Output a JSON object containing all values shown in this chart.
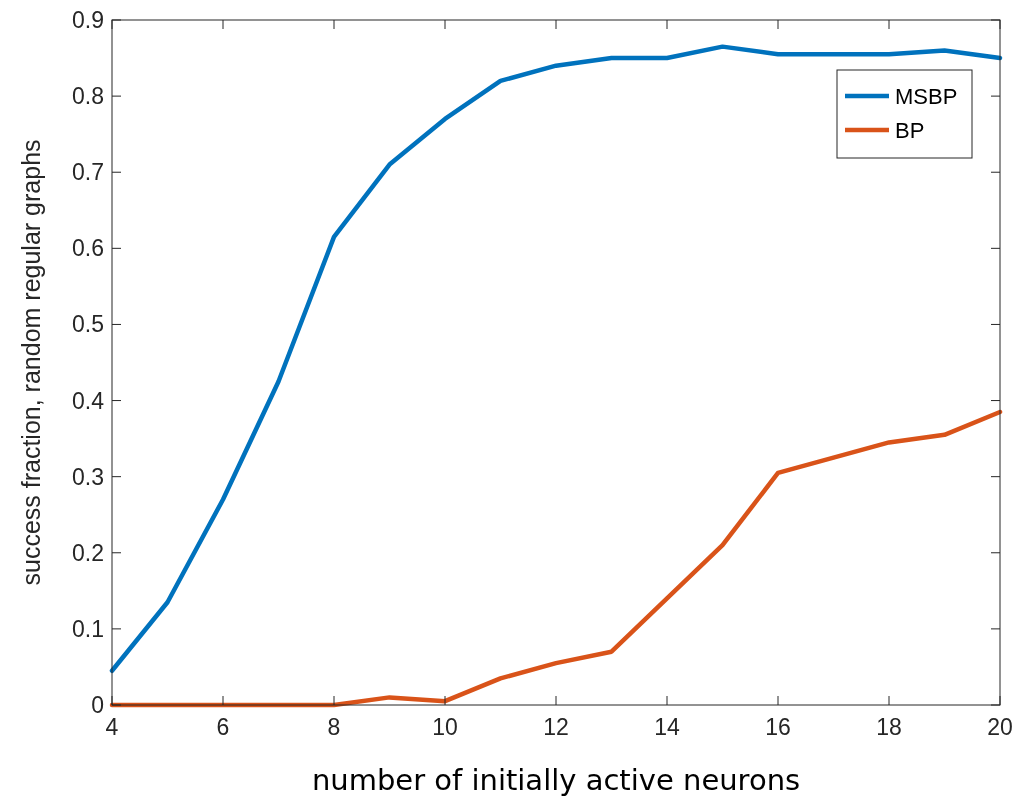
{
  "chart_data": {
    "type": "line",
    "xlabel": "number of initially active neurons",
    "ylabel": "success fraction, random regular graphs",
    "x": [
      4,
      5,
      6,
      7,
      8,
      9,
      10,
      11,
      12,
      13,
      14,
      15,
      16,
      17,
      18,
      19,
      20
    ],
    "series": [
      {
        "name": "MSBP",
        "color": "#0072bd",
        "values": [
          0.045,
          0.135,
          0.27,
          0.425,
          0.615,
          0.71,
          0.77,
          0.82,
          0.84,
          0.85,
          0.85,
          0.865,
          0.855,
          0.855,
          0.855,
          0.86,
          0.85
        ]
      },
      {
        "name": "BP",
        "color": "#d95319",
        "values": [
          0,
          0,
          0,
          0,
          0,
          0.01,
          0.005,
          0.035,
          0.055,
          0.07,
          0.14,
          0.21,
          0.305,
          0.325,
          0.345,
          0.355,
          0.385
        ]
      }
    ],
    "xlim": [
      4,
      20
    ],
    "xticks": [
      4,
      6,
      8,
      10,
      12,
      14,
      16,
      18,
      20
    ],
    "ylim": [
      0,
      0.9
    ],
    "yticks": [
      0,
      0.1,
      0.2,
      0.3,
      0.4,
      0.5,
      0.6,
      0.7,
      0.8,
      0.9
    ],
    "grid": false,
    "legend": "top right",
    "marker": "none",
    "line_style": "solid"
  }
}
